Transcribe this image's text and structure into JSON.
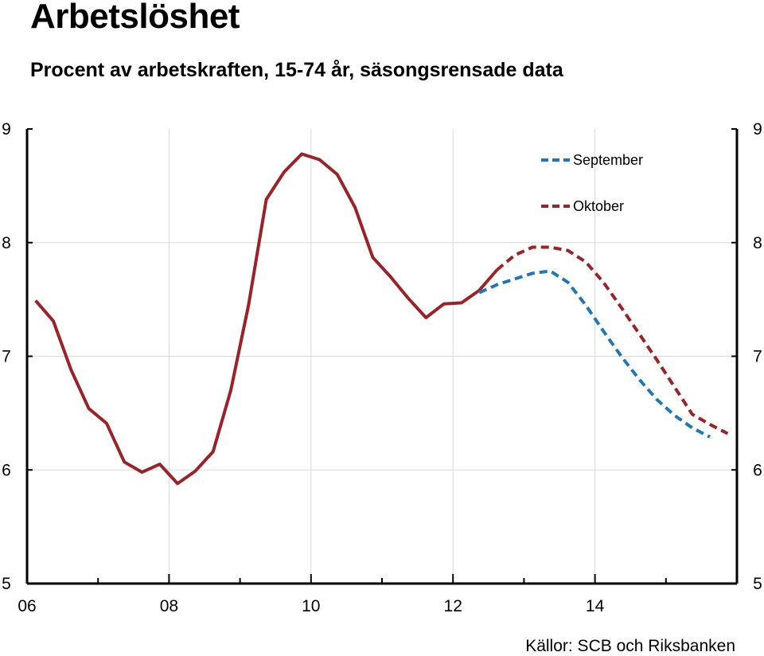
{
  "chart_data": {
    "type": "line",
    "title": "Arbetslöshet",
    "subtitle": "Procent av arbetskraften, 15-74 år, säsongsrensade data",
    "source": "Källor: SCB och Riksbanken",
    "ylim": [
      5,
      9
    ],
    "xlim": [
      2006.0,
      2016.0
    ],
    "y_ticks": [
      "5",
      "6",
      "7",
      "8",
      "9"
    ],
    "x_ticks": [
      "06",
      "08",
      "10",
      "12",
      "14"
    ],
    "grid": true,
    "legend_position": "top-right",
    "series": [
      {
        "name": "",
        "style": "solid",
        "color": "#9b2226",
        "points": [
          [
            2006.12,
            7.49
          ],
          [
            2006.37,
            7.31
          ],
          [
            2006.62,
            6.88
          ],
          [
            2006.87,
            6.54
          ],
          [
            2007.12,
            6.41
          ],
          [
            2007.37,
            6.07
          ],
          [
            2007.62,
            5.98
          ],
          [
            2007.87,
            6.05
          ],
          [
            2008.12,
            5.88
          ],
          [
            2008.37,
            5.99
          ],
          [
            2008.62,
            6.16
          ],
          [
            2008.87,
            6.7
          ],
          [
            2009.12,
            7.45
          ],
          [
            2009.37,
            8.38
          ],
          [
            2009.62,
            8.62
          ],
          [
            2009.87,
            8.78
          ],
          [
            2010.12,
            8.73
          ],
          [
            2010.37,
            8.6
          ],
          [
            2010.62,
            8.31
          ],
          [
            2010.87,
            7.87
          ],
          [
            2011.12,
            7.7
          ],
          [
            2011.37,
            7.51
          ],
          [
            2011.62,
            7.34
          ],
          [
            2011.87,
            7.46
          ],
          [
            2012.12,
            7.47
          ],
          [
            2012.37,
            7.58
          ],
          [
            2012.62,
            7.76
          ]
        ]
      },
      {
        "name": "September",
        "style": "dashed",
        "color": "#1f77b4",
        "points": [
          [
            2012.37,
            7.56
          ],
          [
            2012.62,
            7.63
          ],
          [
            2012.87,
            7.68
          ],
          [
            2013.12,
            7.73
          ],
          [
            2013.37,
            7.75
          ],
          [
            2013.62,
            7.65
          ],
          [
            2013.87,
            7.45
          ],
          [
            2014.12,
            7.22
          ],
          [
            2014.37,
            7.0
          ],
          [
            2014.62,
            6.8
          ],
          [
            2014.87,
            6.62
          ],
          [
            2015.12,
            6.48
          ],
          [
            2015.37,
            6.37
          ],
          [
            2015.62,
            6.29
          ]
        ]
      },
      {
        "name": "Oktober",
        "style": "dashed",
        "color": "#9b2226",
        "points": [
          [
            2012.62,
            7.76
          ],
          [
            2012.87,
            7.89
          ],
          [
            2013.12,
            7.96
          ],
          [
            2013.37,
            7.96
          ],
          [
            2013.62,
            7.93
          ],
          [
            2013.87,
            7.83
          ],
          [
            2014.12,
            7.65
          ],
          [
            2014.37,
            7.43
          ],
          [
            2014.62,
            7.2
          ],
          [
            2014.87,
            6.97
          ],
          [
            2015.12,
            6.73
          ],
          [
            2015.37,
            6.49
          ],
          [
            2015.62,
            6.4
          ],
          [
            2015.87,
            6.32
          ]
        ]
      }
    ]
  }
}
